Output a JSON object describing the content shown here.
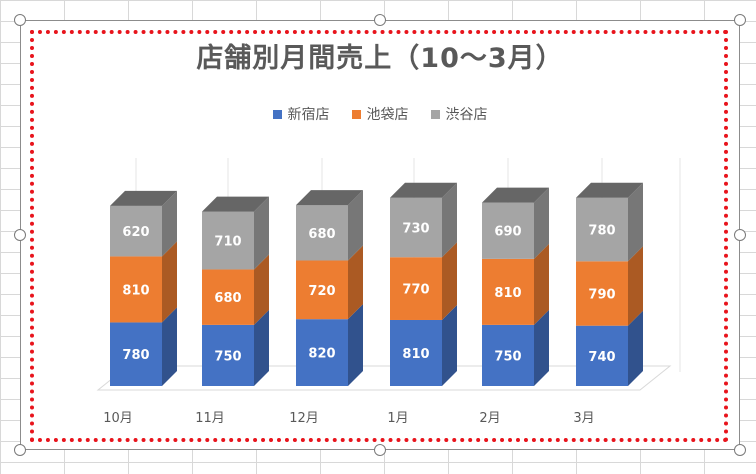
{
  "chart_data": {
    "type": "bar",
    "stacked": true,
    "style": "3d-column",
    "title": "店舗別月間売上（10～3月）",
    "categories": [
      "10月",
      "11月",
      "12月",
      "1月",
      "2月",
      "3月"
    ],
    "series": [
      {
        "name": "新宿店",
        "values": [
          780,
          750,
          820,
          810,
          750,
          740
        ],
        "color": "#4472c4"
      },
      {
        "name": "池袋店",
        "values": [
          810,
          680,
          720,
          770,
          810,
          790
        ],
        "color": "#ed7d31"
      },
      {
        "name": "渋谷店",
        "values": [
          620,
          710,
          680,
          730,
          690,
          780
        ],
        "color": "#a5a5a5"
      }
    ],
    "legend_position": "top",
    "grid": true,
    "ylim": [
      0,
      2400
    ]
  },
  "colors": {
    "selection_outline": "#e8141c",
    "title_text": "#595959"
  }
}
